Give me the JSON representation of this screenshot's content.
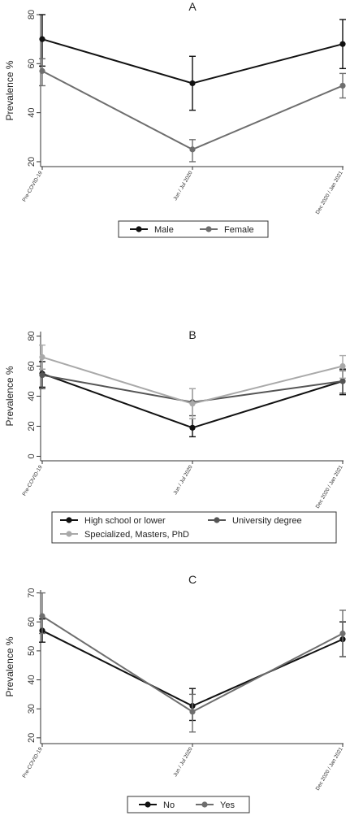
{
  "chart_data": [
    {
      "type": "line",
      "title": "A",
      "ylabel": "Prevalence %",
      "xlabel": "",
      "categories": [
        "Pre-COVID-19",
        "Jun / Jul 2020",
        "Dec 2020 / Jan 2021"
      ],
      "ylim": [
        18,
        80
      ],
      "yticks": [
        20,
        40,
        60,
        80
      ],
      "series": [
        {
          "name": "Male",
          "color": "#111111",
          "values": [
            70,
            52,
            68
          ],
          "ci_low": [
            59,
            41,
            58
          ],
          "ci_high": [
            80,
            63,
            78
          ]
        },
        {
          "name": "Female",
          "color": "#6e6e6e",
          "values": [
            57,
            25,
            51
          ],
          "ci_low": [
            51,
            20,
            46
          ],
          "ci_high": [
            62,
            29,
            56
          ]
        }
      ],
      "legend_position": "bottom-center",
      "grid": false
    },
    {
      "type": "line",
      "title": "B",
      "ylabel": "Prevalence %",
      "xlabel": "",
      "categories": [
        "Pre-COVID-19",
        "Jun / Jul 2020",
        "Dec 2020 / Jan 2021"
      ],
      "ylim": [
        -3,
        83
      ],
      "yticks": [
        0,
        20,
        40,
        60,
        80
      ],
      "series": [
        {
          "name": "High school or lower",
          "color": "#111111",
          "values": [
            55,
            19,
            50
          ],
          "ci_low": [
            46,
            13,
            41
          ],
          "ci_high": [
            63,
            25,
            58
          ]
        },
        {
          "name": "University degree",
          "color": "#555555",
          "values": [
            54,
            36,
            50
          ],
          "ci_low": [
            45,
            27,
            42
          ],
          "ci_high": [
            58,
            45,
            57
          ]
        },
        {
          "name": "Specialized, Masters, PhD",
          "color": "#a9a9a9",
          "values": [
            66,
            35,
            60
          ],
          "ci_low": [
            58,
            25,
            52
          ],
          "ci_high": [
            74,
            45,
            67
          ]
        }
      ],
      "legend_position": "bottom-center",
      "grid": false
    },
    {
      "type": "line",
      "title": "C",
      "ylabel": "Prevalence %",
      "xlabel": "",
      "categories": [
        "Pre-COVID-19",
        "Jun / Jul 2020",
        "Dec 2020 / Jan 2021"
      ],
      "ylim": [
        18,
        71
      ],
      "yticks": [
        20,
        30,
        40,
        50,
        60,
        70
      ],
      "series": [
        {
          "name": "No",
          "color": "#111111",
          "values": [
            57,
            31,
            54
          ],
          "ci_low": [
            53,
            26,
            48
          ],
          "ci_high": [
            61,
            37,
            60
          ]
        },
        {
          "name": "Yes",
          "color": "#6e6e6e",
          "values": [
            62,
            29,
            56
          ],
          "ci_low": [
            56,
            22,
            48
          ],
          "ci_high": [
            70,
            35,
            64
          ]
        }
      ],
      "legend_position": "bottom-center",
      "grid": false
    }
  ]
}
